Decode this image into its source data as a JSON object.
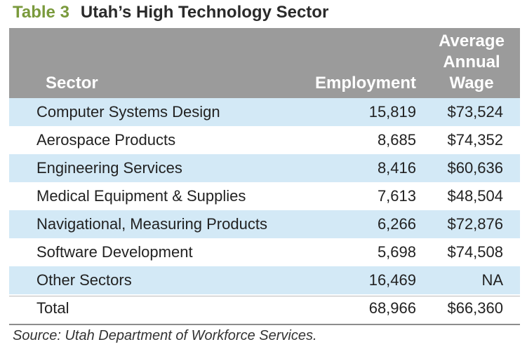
{
  "title": {
    "label": "Table 3",
    "text": "Utah’s High Technology Sector"
  },
  "header": {
    "sector": "Sector",
    "employment": "Employment",
    "wage_line1": "Average",
    "wage_line2": "Annual",
    "wage_line3": "Wage"
  },
  "rows": [
    {
      "sector": "Computer Systems Design",
      "employment": "15,819",
      "wage": "$73,524"
    },
    {
      "sector": "Aerospace Products",
      "employment": "8,685",
      "wage": "$74,352"
    },
    {
      "sector": "Engineering Services",
      "employment": "8,416",
      "wage": "$60,636"
    },
    {
      "sector": "Medical Equipment & Supplies",
      "employment": "7,613",
      "wage": "$48,504"
    },
    {
      "sector": "Navigational, Measuring Products",
      "employment": "6,266",
      "wage": "$72,876"
    },
    {
      "sector": "Software Development",
      "employment": "5,698",
      "wage": "$74,508"
    },
    {
      "sector": "Other Sectors",
      "employment": "16,469",
      "wage": "NA"
    },
    {
      "sector": "Total",
      "employment": "68,966",
      "wage": "$66,360"
    }
  ],
  "source": "Source: Utah Department of Workforce Services.",
  "colors": {
    "label": "#7a9a3c",
    "header_bg": "#9b9b9b",
    "row_shade": "#d3e9f6"
  }
}
